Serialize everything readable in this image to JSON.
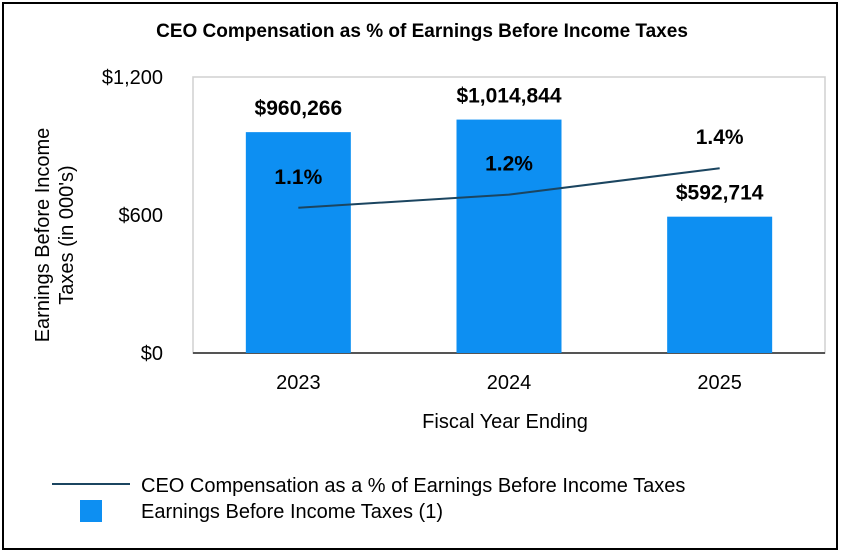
{
  "chart_data": {
    "type": "bar+line",
    "title": "CEO Compensation as % of Earnings Before Income Taxes",
    "categories": [
      "2023",
      "2024",
      "2025"
    ],
    "xlabel": "Fiscal Year Ending",
    "ylabel_line1": "Earnings Before Income",
    "ylabel_line2": "Taxes (in 000's)",
    "ylim": [
      0,
      1200
    ],
    "yticks": [
      0,
      600,
      1200
    ],
    "ytick_labels": [
      "$0",
      "$600",
      "$1,200"
    ],
    "series": [
      {
        "name": "Earnings Before Income Taxes (1)",
        "type": "bar",
        "color": "#0D8FF2",
        "values": [
          960.266,
          1014.844,
          592.714
        ],
        "labels": [
          "$960,266",
          "$1,014,844",
          "$592,714"
        ]
      },
      {
        "name": "CEO Compensation as a % of Earnings Before Income Taxes",
        "type": "line",
        "color": "#1B4560",
        "values": [
          1.1,
          1.2,
          1.4
        ],
        "labels": [
          "1.1%",
          "1.2%",
          "1.4%"
        ]
      }
    ],
    "grid": false,
    "legend_position": "bottom"
  }
}
